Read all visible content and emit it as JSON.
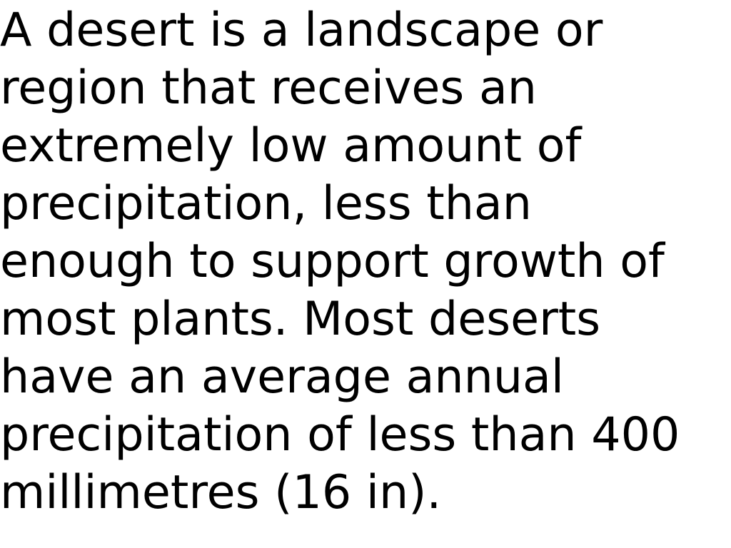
{
  "document": {
    "lines": [
      "A desert is a landscape or",
      "region that receives an",
      "extremely low amount of",
      "precipitation, less than",
      "enough to support growth of",
      "most plants. Most deserts",
      "have an average annual",
      "precipitation of less than 400",
      "millimetres (16 in)."
    ],
    "colors": {
      "background": "#ffffff",
      "text": "#000000"
    }
  }
}
